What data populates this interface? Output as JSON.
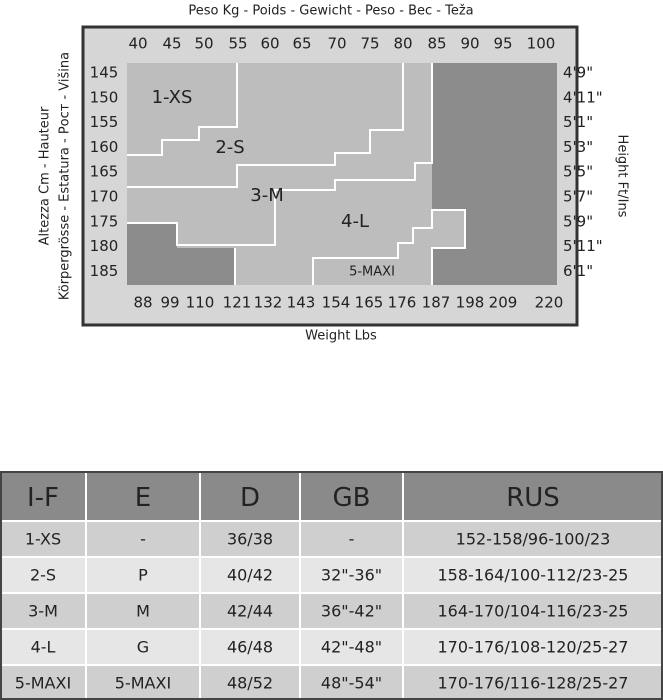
{
  "diagram": {
    "top_title": "Peso Kg - Poids - Gewicht - Peso - Вес - Teža",
    "kg": [
      "40",
      "45",
      "50",
      "55",
      "60",
      "65",
      "70",
      "75",
      "80",
      "85",
      "90",
      "95",
      "100"
    ],
    "lbs": [
      "88",
      "99",
      "110",
      "121",
      "132",
      "143",
      "154",
      "165",
      "176",
      "187",
      "198",
      "209",
      "220"
    ],
    "cm": [
      "145",
      "150",
      "155",
      "160",
      "165",
      "170",
      "175",
      "180",
      "185"
    ],
    "ft": [
      "4'9\"",
      "4'11\"",
      "5'1\"",
      "5'3\"",
      "5'5\"",
      "5'7\"",
      "5'9\"",
      "5'11\"",
      "6'1\""
    ],
    "left_title": [
      "Altezza Cm - Hauteur",
      "Körpergrösse - Estatura - Рост - Višina"
    ],
    "right_title": "Height Ft/Ins",
    "bottom_title": "Weight Lbs",
    "regions": [
      "1-XS",
      "2-S",
      "3-M",
      "4-L",
      "5-MAXI"
    ]
  },
  "table": {
    "header": [
      "I-F",
      "E",
      "D",
      "GB",
      "RUS"
    ],
    "rows": [
      [
        "1-XS",
        "-",
        "36/38",
        "-",
        "152-158/96-100/23"
      ],
      [
        "2-S",
        "P",
        "40/42",
        "32\"-36\"",
        "158-164/100-112/23-25"
      ],
      [
        "3-M",
        "M",
        "42/44",
        "36\"-42\"",
        "164-170/104-116/23-25"
      ],
      [
        "4-L",
        "G",
        "46/48",
        "42\"-48\"",
        "170-176/108-120/25-27"
      ],
      [
        "5-MAXI",
        "5-MAXI",
        "48/52",
        "48\"-54\"",
        "170-176/116-128/25-27"
      ]
    ]
  }
}
